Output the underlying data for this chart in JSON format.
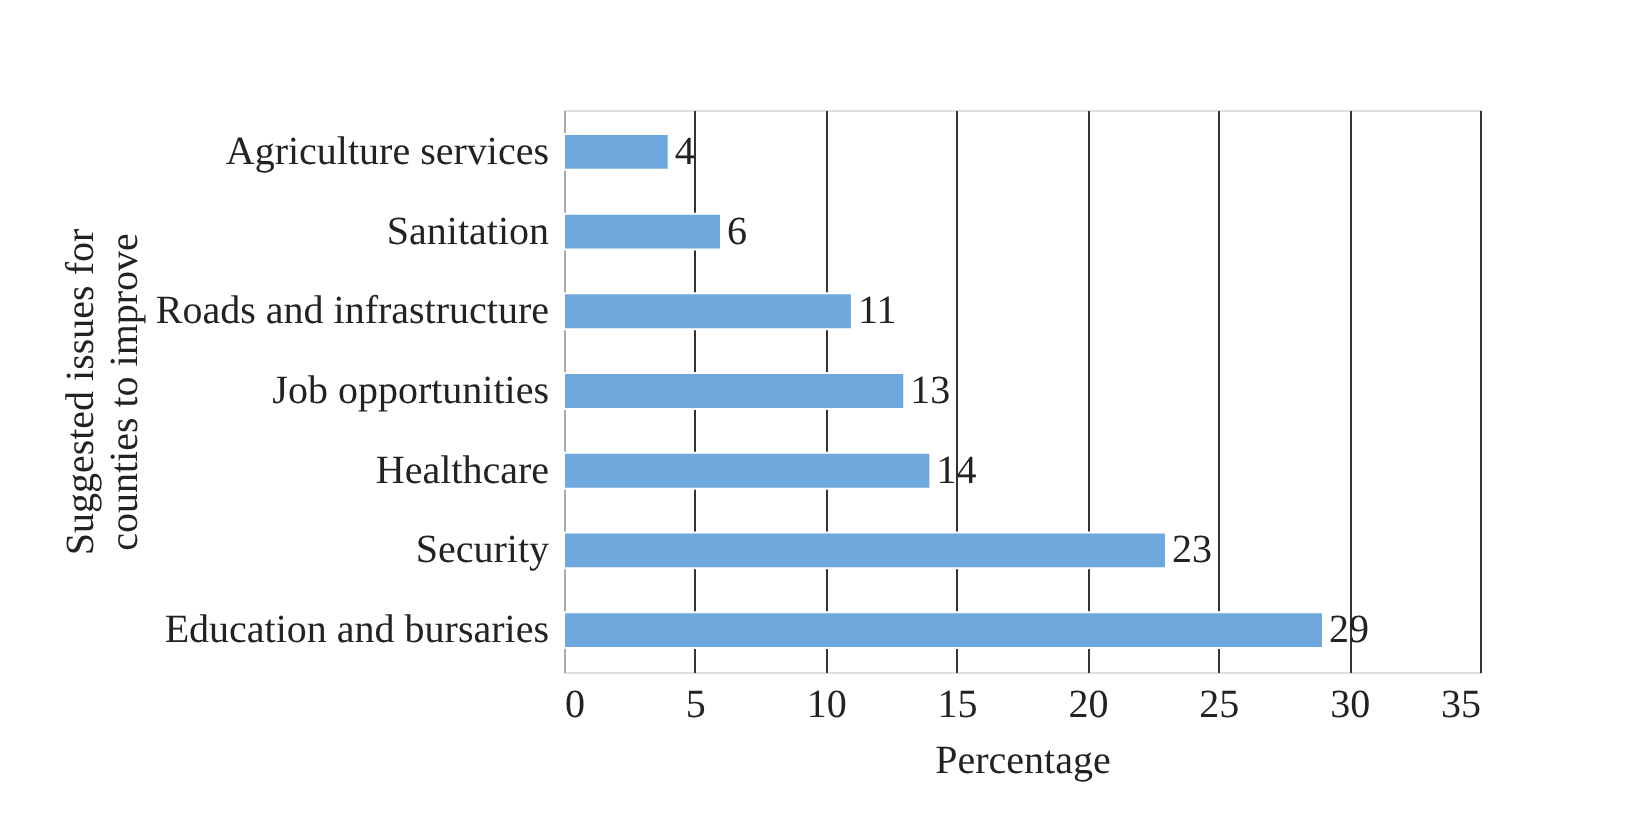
{
  "chart_data": {
    "type": "bar",
    "orientation": "horizontal",
    "categories": [
      "Agriculture services",
      "Sanitation",
      "Roads and infrastructure",
      "Job opportunities",
      "Healthcare",
      "Security",
      "Education and bursaries"
    ],
    "values": [
      4,
      6,
      11,
      13,
      14,
      23,
      29
    ],
    "color": "#6fa8dc",
    "xlim": [
      0,
      35
    ],
    "xticks": [
      0,
      5,
      10,
      15,
      20,
      25,
      30,
      35
    ],
    "grid": "x",
    "data_labels": true,
    "xlabel": "Percentage",
    "ylabel": "Suggested issues for counties to improve"
  }
}
